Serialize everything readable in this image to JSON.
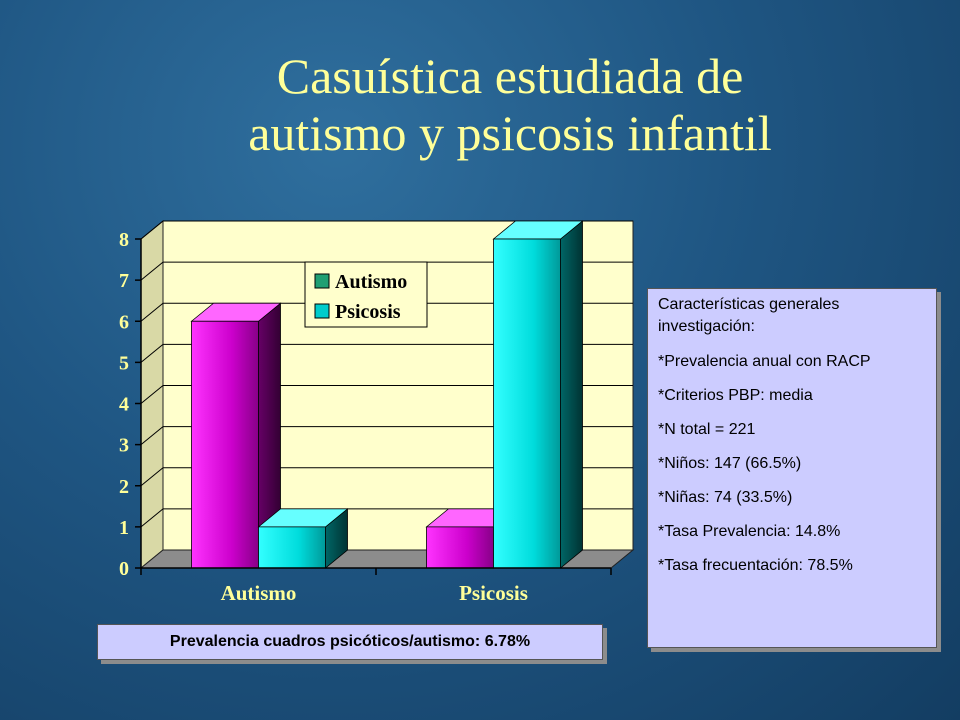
{
  "slide": {
    "title_line1": "Casuística estudiada de",
    "title_line2": "autismo y psicosis infantil"
  },
  "chart_data": {
    "type": "bar",
    "categories": [
      "Autismo",
      "Psicosis"
    ],
    "series": [
      {
        "name": "Autismo",
        "values": [
          6,
          1
        ],
        "color": "#ff00ff"
      },
      {
        "name": "Psicosis",
        "values": [
          1,
          8
        ],
        "color": "#00ffff"
      }
    ],
    "ylim": [
      0,
      8
    ],
    "yticks": [
      "0",
      "1",
      "2",
      "3",
      "4",
      "5",
      "6",
      "7",
      "8"
    ],
    "three_d": true,
    "grid": true,
    "plot_area_color": "#ffffcc",
    "legend_position": "top-center"
  },
  "info_box": {
    "heading": "Características generales investigación:",
    "items": [
      "*Prevalencia anual con RACP",
      "*Criterios PBP: media",
      "*N total = 221",
      "*Niños: 147 (66.5%)",
      "*Niñas: 74 (33.5%)",
      "*Tasa Prevalencia: 14.8%",
      "*Tasa frecuentación: 78.5%"
    ]
  },
  "footer_box": {
    "text": "Prevalencia cuadros psicóticos/autismo: 6.78%"
  }
}
